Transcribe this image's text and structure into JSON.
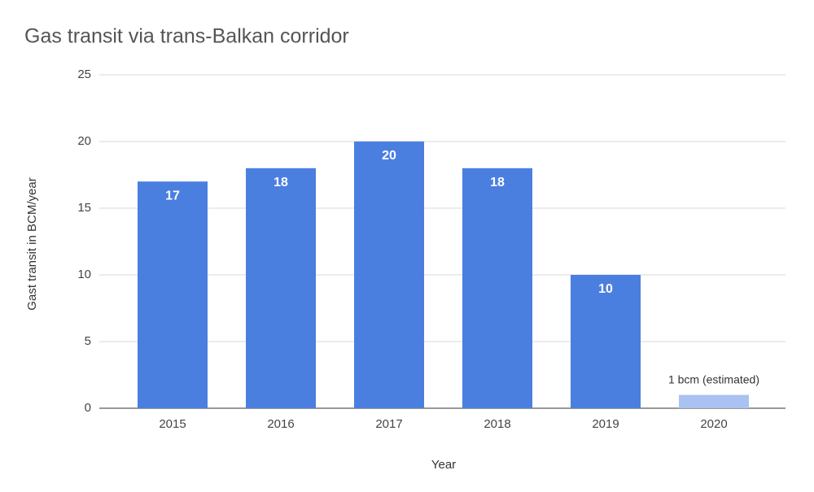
{
  "chart_data": {
    "type": "bar",
    "title": "Gas transit via trans-Balkan corridor",
    "x_label": "Year",
    "y_label": "Gast transit in BCM/year",
    "categories": [
      "2015",
      "2016",
      "2017",
      "2018",
      "2019",
      "2020"
    ],
    "values": [
      17,
      18,
      20,
      18,
      10,
      1
    ],
    "value_labels": [
      "17",
      "18",
      "20",
      "18",
      "10",
      "1 bcm (estimated)"
    ],
    "colors": [
      "#4a7fe0",
      "#4a7fe0",
      "#4a7fe0",
      "#4a7fe0",
      "#4a7fe0",
      "#a9c2f1"
    ],
    "ylim": [
      0,
      25
    ],
    "yticks": [
      0,
      5,
      10,
      15,
      20,
      25
    ],
    "grid": true
  }
}
